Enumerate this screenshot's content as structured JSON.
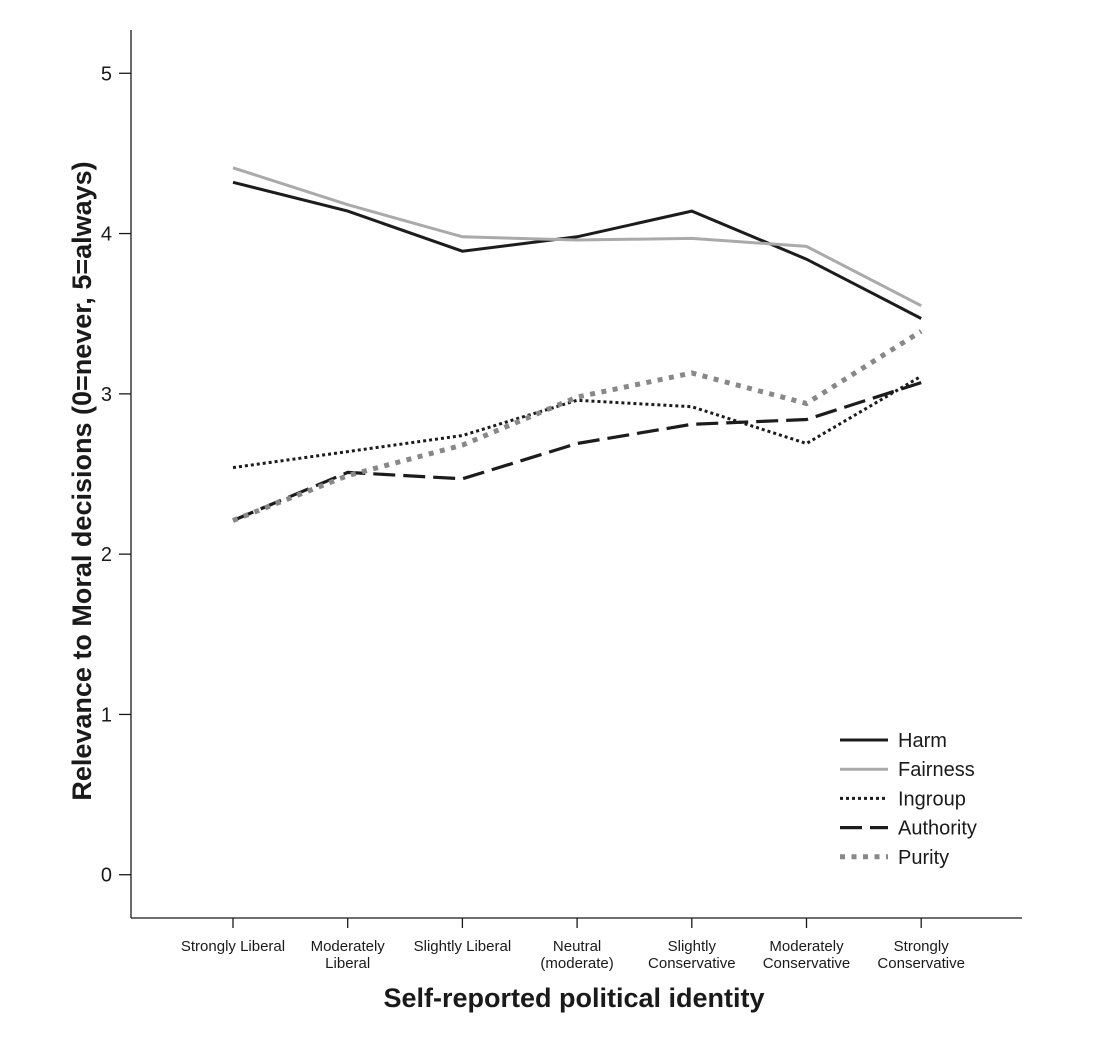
{
  "chart_data": {
    "type": "line",
    "title": "",
    "xlabel": "Self-reported political identity",
    "ylabel": "Relevance to Moral decisions (0=never, 5=always)",
    "ylim": [
      -0.27,
      5.27
    ],
    "yticks": [
      "0",
      "1",
      "2",
      "3",
      "4",
      "5"
    ],
    "categories": [
      [
        "Strongly Liberal"
      ],
      [
        "Moderately",
        "Liberal"
      ],
      [
        "Slightly Liberal"
      ],
      [
        "Neutral",
        "(moderate)"
      ],
      [
        "Slightly",
        "Conservative"
      ],
      [
        "Moderately",
        "Conservative"
      ],
      [
        "Strongly",
        "Conservative"
      ]
    ],
    "series": [
      {
        "name": "Harm",
        "values": [
          4.32,
          4.14,
          3.89,
          3.98,
          4.14,
          3.84,
          3.47
        ],
        "color": "#1c1c1c",
        "style": "solid"
      },
      {
        "name": "Fairness",
        "values": [
          4.41,
          4.18,
          3.98,
          3.96,
          3.97,
          3.92,
          3.55
        ],
        "color": "#aaaaaa",
        "style": "solid"
      },
      {
        "name": "Ingroup",
        "values": [
          2.54,
          2.64,
          2.74,
          2.96,
          2.92,
          2.69,
          3.11
        ],
        "color": "#1c1c1c",
        "style": "dotted"
      },
      {
        "name": "Authority",
        "values": [
          2.21,
          2.51,
          2.47,
          2.69,
          2.81,
          2.84,
          3.07
        ],
        "color": "#1c1c1c",
        "style": "dashed"
      },
      {
        "name": "Purity",
        "values": [
          2.21,
          2.49,
          2.68,
          2.98,
          3.13,
          2.94,
          3.39
        ],
        "color": "#888888",
        "style": "dotted-thick"
      }
    ],
    "legend": "bottom-right"
  }
}
